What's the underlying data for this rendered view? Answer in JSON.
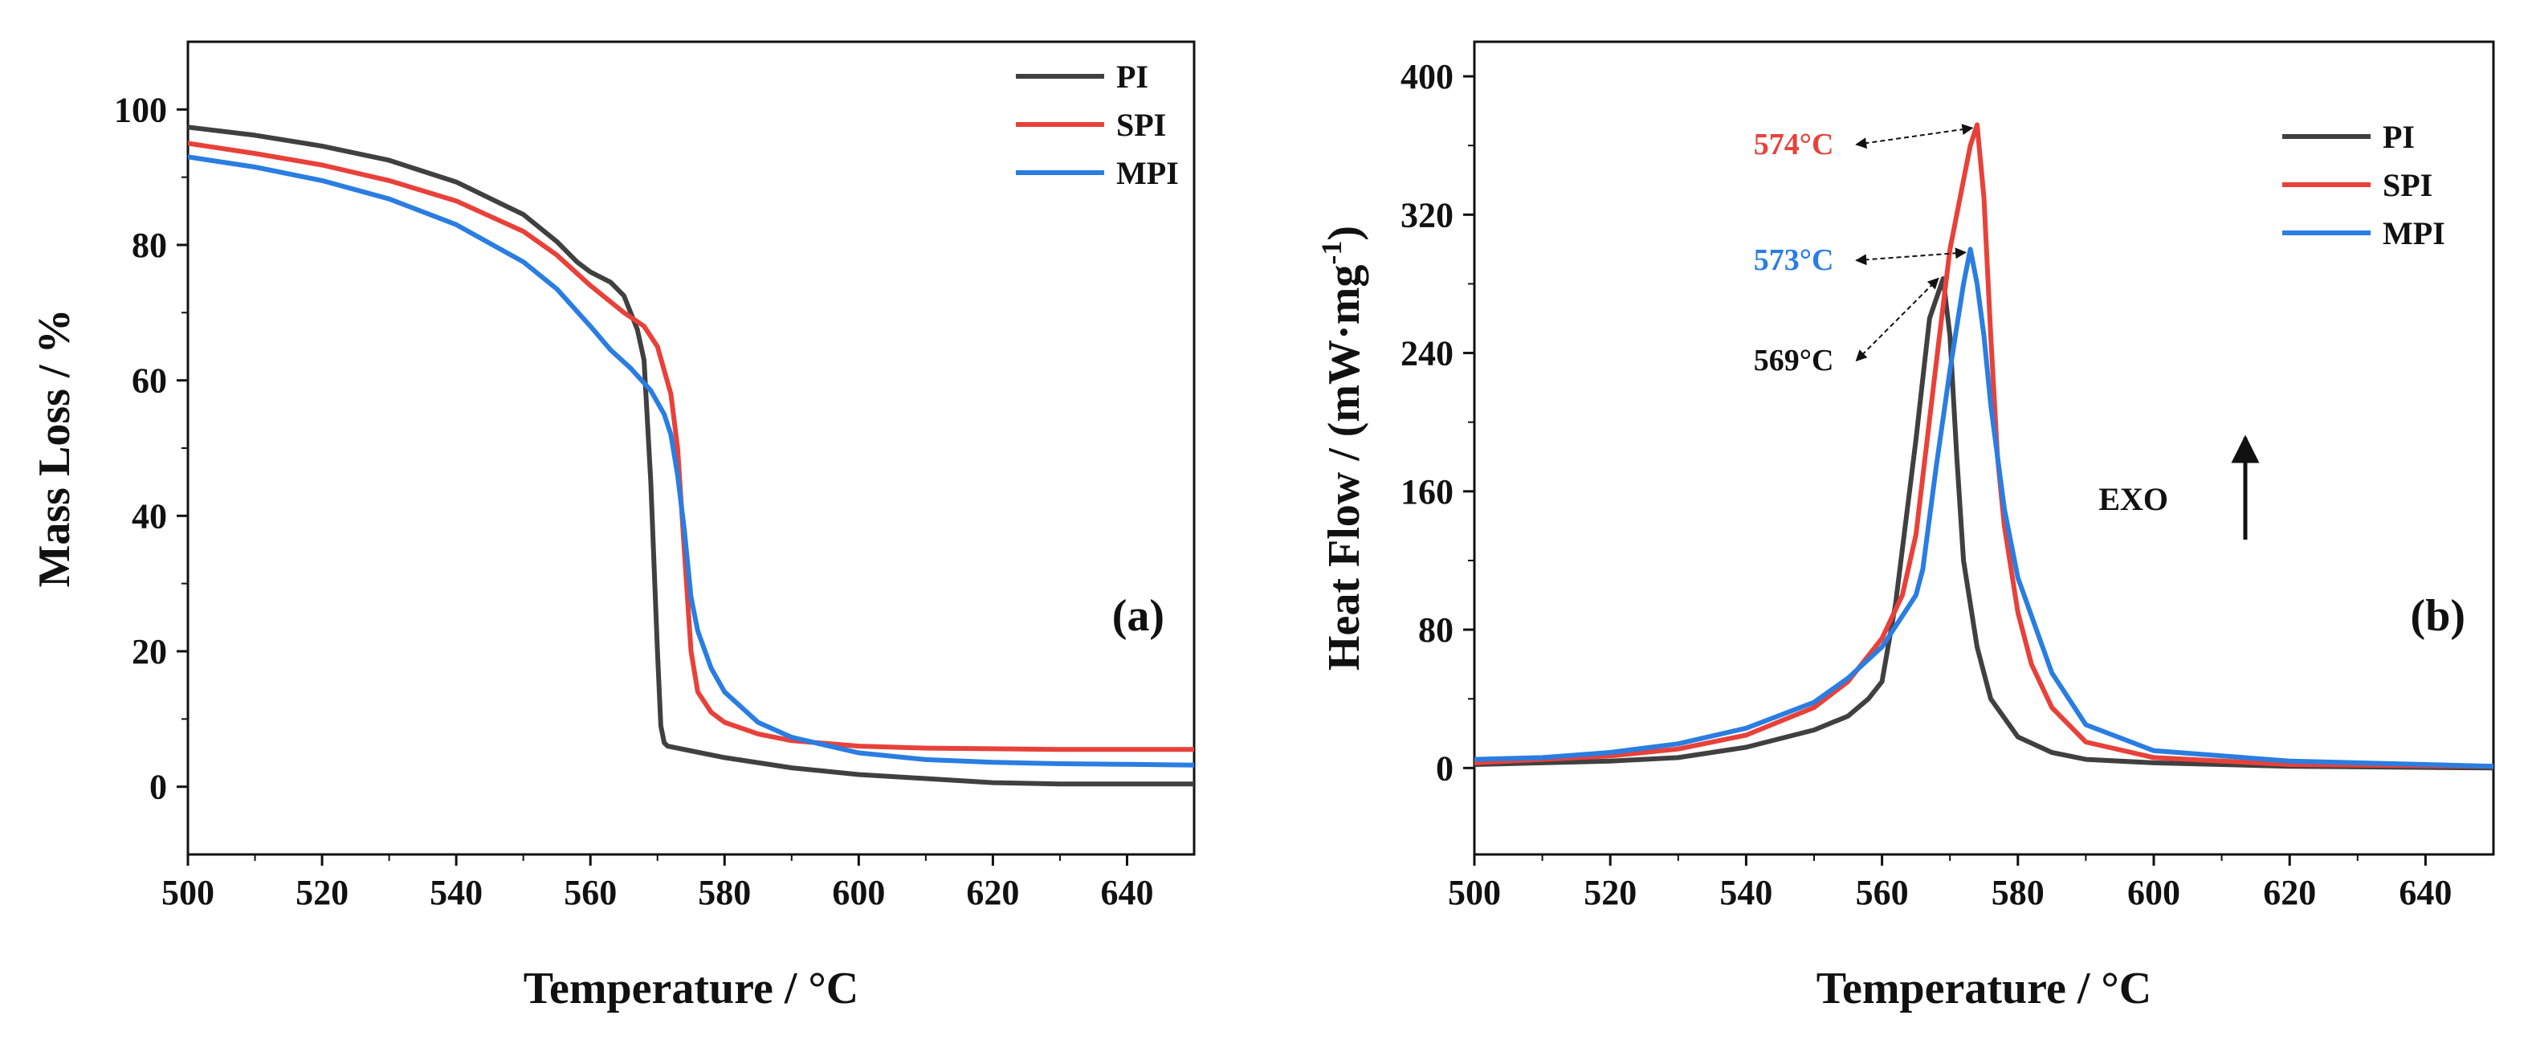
{
  "chart_data": [
    {
      "type": "line",
      "panel_label": "(a)",
      "xlabel": "Temperature  / °C",
      "ylabel": "Mass Loss / %",
      "xlim": [
        500,
        650
      ],
      "ylim": [
        -10,
        110
      ],
      "xticks": [
        500,
        520,
        540,
        560,
        580,
        600,
        620,
        640
      ],
      "yticks": [
        0,
        20,
        40,
        60,
        80,
        100
      ],
      "grid": false,
      "legend_position": "top-right",
      "series": [
        {
          "name": "PI",
          "color": "#404040",
          "x": [
            500,
            510,
            520,
            530,
            540,
            550,
            555,
            558,
            560,
            563,
            565,
            567,
            568,
            569,
            570,
            570.5,
            571,
            571.5,
            575,
            580,
            590,
            600,
            610,
            620,
            630,
            640,
            650
          ],
          "y": [
            97.4,
            96.2,
            94.6,
            92.5,
            89.3,
            84.5,
            80.5,
            77.5,
            76.0,
            74.5,
            72.5,
            67.5,
            63.0,
            45.0,
            20.0,
            9.0,
            6.5,
            6.0,
            5.3,
            4.3,
            2.8,
            1.8,
            1.2,
            0.6,
            0.4,
            0.4,
            0.4
          ]
        },
        {
          "name": "SPI",
          "color": "#E8413A",
          "x": [
            500,
            510,
            520,
            530,
            540,
            550,
            555,
            560,
            565,
            568,
            570,
            572,
            573,
            574,
            575,
            576,
            578,
            580,
            585,
            590,
            600,
            610,
            620,
            630,
            640,
            650
          ],
          "y": [
            95.0,
            93.5,
            91.8,
            89.5,
            86.5,
            82.0,
            78.5,
            74.0,
            70.0,
            68.0,
            65.0,
            58.0,
            50.0,
            35.0,
            20.0,
            14.0,
            11.0,
            9.5,
            7.8,
            6.8,
            6.0,
            5.7,
            5.6,
            5.5,
            5.5,
            5.5
          ]
        },
        {
          "name": "MPI",
          "color": "#2A7DE1",
          "x": [
            500,
            510,
            520,
            530,
            540,
            550,
            555,
            560,
            563,
            566,
            569,
            571,
            572,
            573,
            574,
            575,
            576,
            578,
            580,
            585,
            590,
            600,
            610,
            620,
            630,
            640,
            650
          ],
          "y": [
            93.0,
            91.5,
            89.5,
            86.8,
            83.0,
            77.5,
            73.5,
            68.0,
            64.5,
            61.8,
            58.5,
            55.0,
            52.0,
            46.0,
            38.0,
            28.0,
            23.0,
            17.5,
            14.0,
            9.5,
            7.3,
            5.0,
            4.0,
            3.6,
            3.4,
            3.3,
            3.2
          ]
        }
      ]
    },
    {
      "type": "line",
      "panel_label": "(b)",
      "xlabel": "Temperature  / °C",
      "ylabel": "Heat Flow / (mW·mg",
      "ylabel_sup": "-1",
      "ylabel_end": ")",
      "xlim": [
        500,
        650
      ],
      "ylim": [
        -50,
        420
      ],
      "xticks": [
        500,
        520,
        540,
        560,
        580,
        600,
        620,
        640
      ],
      "yticks": [
        0,
        80,
        160,
        240,
        320,
        400
      ],
      "grid": false,
      "legend_position": "top-right",
      "exo_label": "EXO",
      "annotations": [
        {
          "text": "574°C",
          "color": "#E8413A",
          "peak_x": 574,
          "peak_y": 372,
          "text_x": 547,
          "text_y": 355
        },
        {
          "text": "573°C",
          "color": "#2A7DE1",
          "peak_x": 573,
          "peak_y": 300,
          "text_x": 547,
          "text_y": 288
        },
        {
          "text": "569°C",
          "color": "#111111",
          "peak_x": 569,
          "peak_y": 285,
          "text_x": 547,
          "text_y": 230
        }
      ],
      "series": [
        {
          "name": "PI",
          "color": "#404040",
          "x": [
            500,
            510,
            520,
            530,
            540,
            550,
            555,
            558,
            560,
            562,
            565,
            567,
            569,
            570,
            571,
            572,
            574,
            576,
            580,
            585,
            590,
            600,
            620,
            650
          ],
          "y": [
            2,
            3,
            4,
            6,
            12,
            22,
            30,
            40,
            50,
            95,
            190,
            260,
            283,
            250,
            180,
            120,
            70,
            40,
            18,
            9,
            5,
            3,
            1,
            0
          ]
        },
        {
          "name": "SPI",
          "color": "#E8413A",
          "x": [
            500,
            510,
            520,
            530,
            540,
            550,
            555,
            560,
            563,
            565,
            568,
            570,
            572,
            573,
            574,
            575,
            576,
            577,
            578,
            580,
            582,
            585,
            590,
            600,
            620,
            650
          ],
          "y": [
            3,
            5,
            7,
            11,
            19,
            35,
            50,
            75,
            100,
            135,
            235,
            300,
            340,
            360,
            372,
            330,
            250,
            180,
            140,
            90,
            60,
            35,
            15,
            6,
            2,
            1
          ]
        },
        {
          "name": "MPI",
          "color": "#2A7DE1",
          "x": [
            500,
            510,
            520,
            530,
            540,
            550,
            555,
            560,
            563,
            565,
            566,
            568,
            570,
            572,
            573,
            574,
            575,
            576,
            578,
            580,
            585,
            590,
            600,
            620,
            650
          ],
          "y": [
            5,
            6,
            9,
            14,
            23,
            38,
            52,
            70,
            88,
            100,
            115,
            175,
            230,
            280,
            300,
            280,
            250,
            210,
            150,
            110,
            55,
            25,
            10,
            4,
            1
          ]
        }
      ]
    }
  ]
}
